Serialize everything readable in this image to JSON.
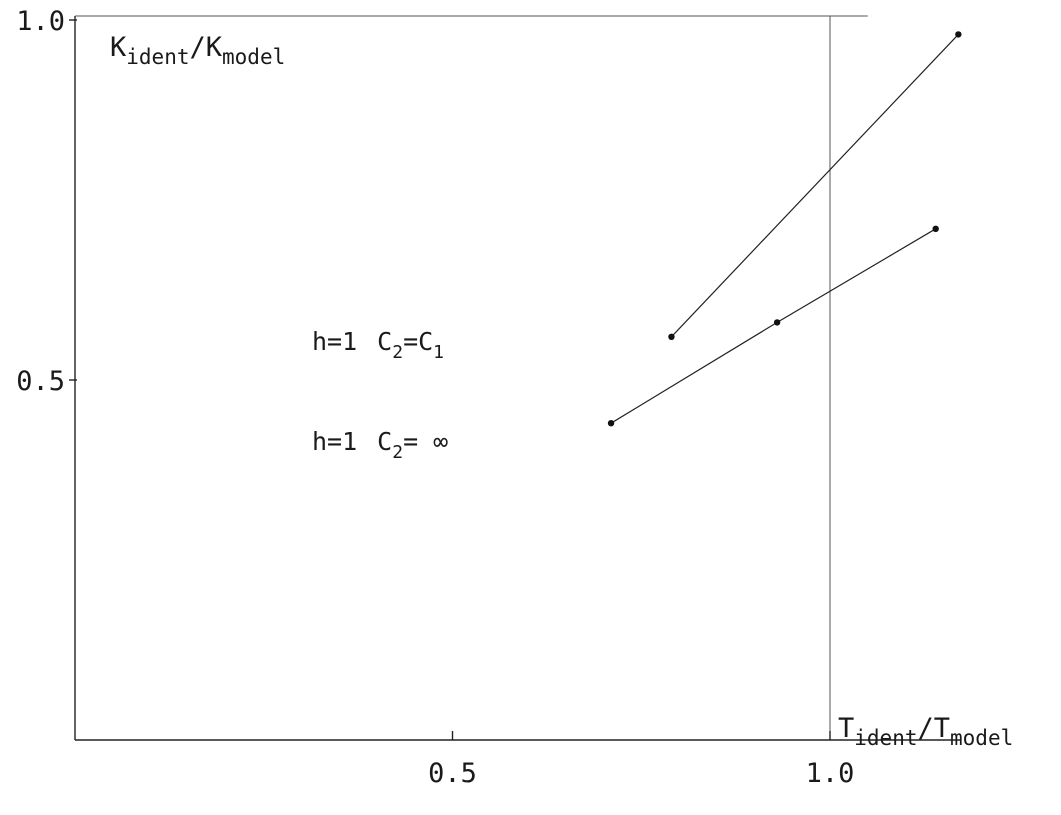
{
  "chart_data": {
    "type": "line",
    "xlabel": {
      "main": "T",
      "sub1": "ident",
      "slash": "/",
      "main2": "T",
      "sub2": "model"
    },
    "ylabel": {
      "main": "K",
      "sub1": "ident",
      "slash": "/",
      "main2": "K",
      "sub2": "model"
    },
    "xlim": [
      0,
      1.2
    ],
    "ylim": [
      0,
      1.0
    ],
    "x_ticks": [
      {
        "value": 0.5,
        "label": "0.5"
      },
      {
        "value": 1.0,
        "label": "1.0"
      }
    ],
    "y_ticks": [
      {
        "value": 0.5,
        "label": "0.5"
      },
      {
        "value": 1.0,
        "label": "1.0"
      }
    ],
    "reference_line_x": 1.0,
    "grid": false,
    "legend_position": "center-left",
    "series": [
      {
        "label_parts": {
          "h": "h=1",
          "c": "C",
          "csub": "2",
          "eq": "=C",
          "eqsub": "1"
        },
        "x": [
          0.79,
          1.17
        ],
        "y": [
          0.56,
          0.98
        ]
      },
      {
        "label_parts": {
          "h": "h=1",
          "c": "C",
          "csub": "2",
          "eq": "= ∞",
          "eqsub": ""
        },
        "x": [
          0.71,
          0.93,
          1.14
        ],
        "y": [
          0.44,
          0.58,
          0.71
        ]
      }
    ]
  }
}
